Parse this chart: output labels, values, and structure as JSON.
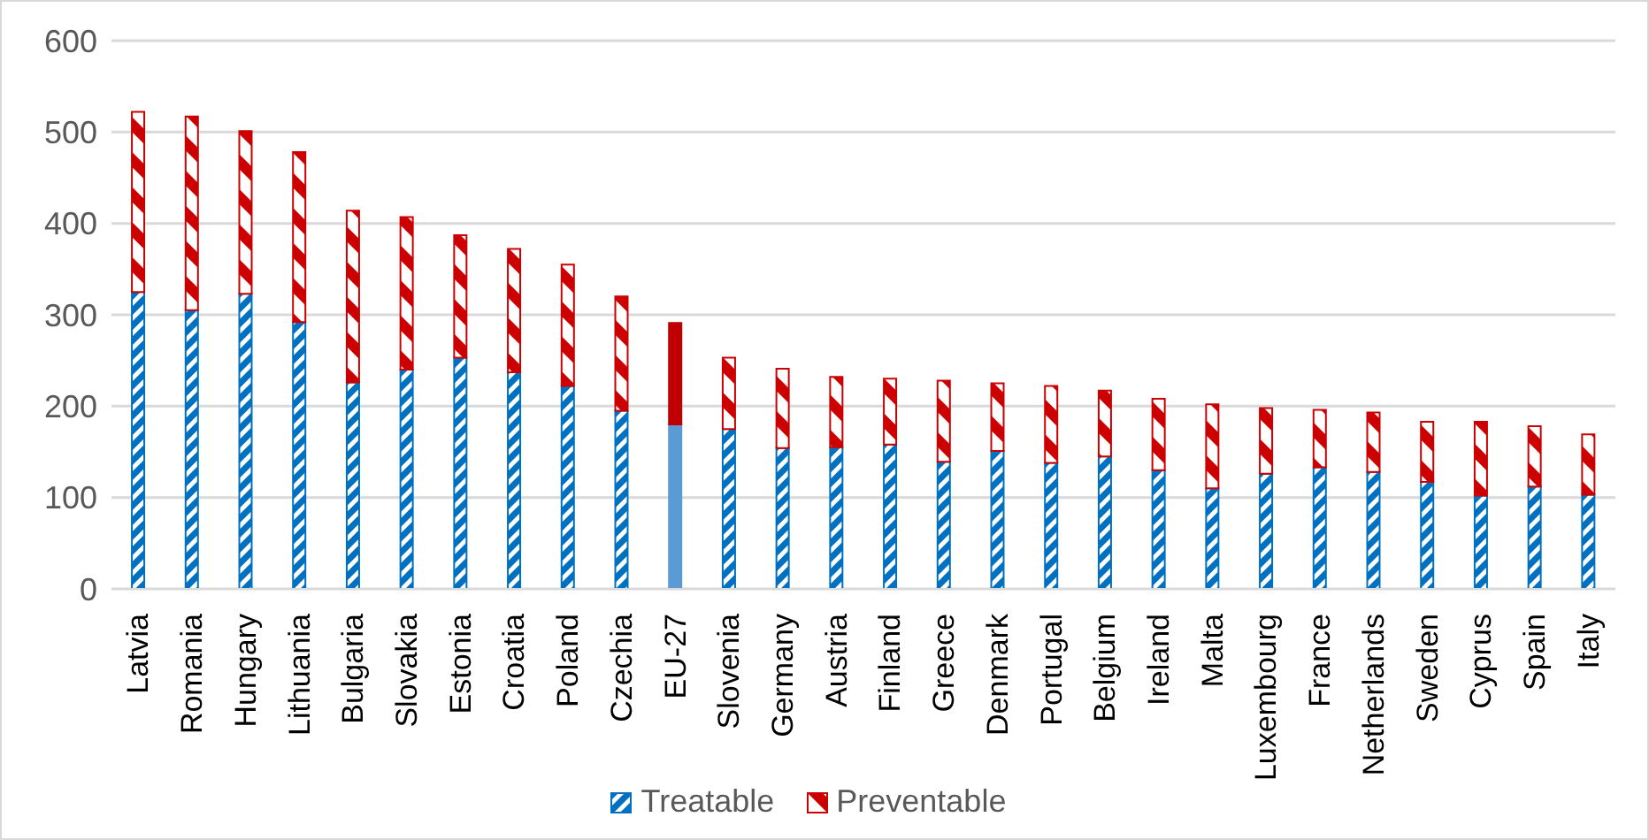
{
  "chart_data": {
    "type": "bar",
    "stacked": true,
    "categories": [
      "Latvia",
      "Romania",
      "Hungary",
      "Lithuania",
      "Bulgaria",
      "Slovakia",
      "Estonia",
      "Croatia",
      "Poland",
      "Czechia",
      "EU-27",
      "Slovenia",
      "Germany",
      "Austria",
      "Finland",
      "Greece",
      "Denmark",
      "Portugal",
      "Belgium",
      "Ireland",
      "Malta",
      "Luxembourg",
      "France",
      "Netherlands",
      "Sweden",
      "Cyprus",
      "Spain",
      "Italy"
    ],
    "series": [
      {
        "name": "Treatable",
        "color": "#0070c0",
        "colors": [
          "#0070c0",
          "#0070c0",
          "#0070c0",
          "#0070c0",
          "#0070c0",
          "#0070c0",
          "#0070c0",
          "#0070c0",
          "#0070c0",
          "#0070c0",
          "#5b9bd5",
          "#0070c0",
          "#0070c0",
          "#0070c0",
          "#0070c0",
          "#0070c0",
          "#0070c0",
          "#0070c0",
          "#0070c0",
          "#0070c0",
          "#0070c0",
          "#0070c0",
          "#0070c0",
          "#0070c0",
          "#0070c0",
          "#0070c0",
          "#0070c0",
          "#0070c0"
        ],
        "values": [
          325,
          305,
          323,
          292,
          226,
          240,
          253,
          237,
          222,
          195,
          180,
          175,
          154,
          155,
          158,
          139,
          151,
          138,
          145,
          130,
          110,
          126,
          133,
          128,
          117,
          102,
          112,
          103
        ]
      },
      {
        "name": "Preventable",
        "color": "#cc0000",
        "colors": [
          "#cc0000",
          "#cc0000",
          "#cc0000",
          "#cc0000",
          "#cc0000",
          "#cc0000",
          "#cc0000",
          "#cc0000",
          "#cc0000",
          "#cc0000",
          "#c00000",
          "#cc0000",
          "#cc0000",
          "#cc0000",
          "#cc0000",
          "#cc0000",
          "#cc0000",
          "#cc0000",
          "#cc0000",
          "#cc0000",
          "#cc0000",
          "#cc0000",
          "#cc0000",
          "#cc0000",
          "#cc0000",
          "#cc0000",
          "#cc0000",
          "#cc0000"
        ],
        "values": [
          197,
          212,
          178,
          186,
          188,
          167,
          134,
          135,
          133,
          125,
          111,
          78,
          87,
          77,
          72,
          89,
          74,
          84,
          72,
          78,
          92,
          72,
          63,
          65,
          66,
          81,
          66,
          66
        ]
      }
    ],
    "ylim": [
      0,
      600
    ],
    "yticks": [
      0,
      100,
      200,
      300,
      400,
      500,
      600
    ],
    "grid": "y",
    "legend": "bottom"
  }
}
